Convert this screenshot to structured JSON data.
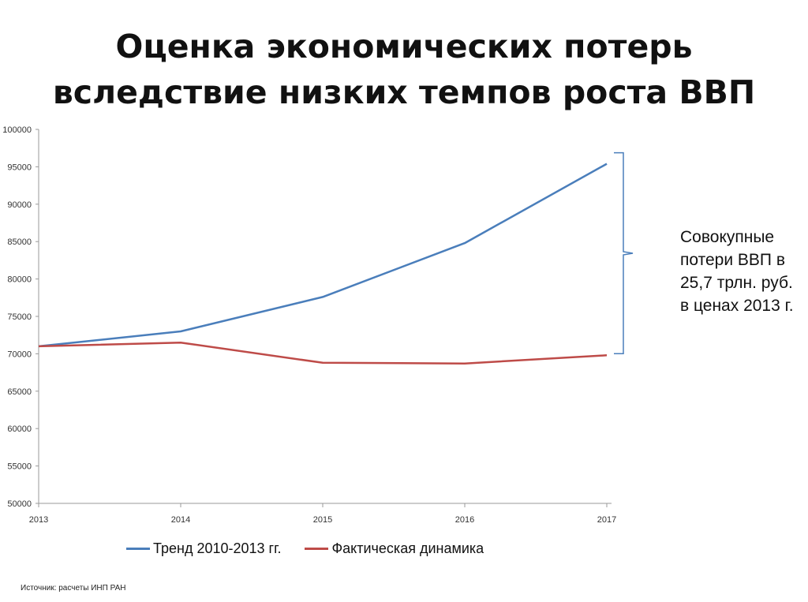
{
  "title": {
    "line1": "Оценка экономических потерь",
    "line2": "вследствие низких темпов роста ВВП"
  },
  "annotation": {
    "lines": [
      "Совокупные",
      "потери ВВП в",
      "25,7 трлн. руб.",
      "в ценах 2013 г."
    ]
  },
  "source": "Источник: расчеты ИНП РАН",
  "chart_data": {
    "type": "line",
    "x": [
      "2013",
      "2014",
      "2015",
      "2016",
      "2017"
    ],
    "ylim": [
      50000,
      100000
    ],
    "yticks": [
      "50000",
      "55000",
      "60000",
      "65000",
      "70000",
      "75000",
      "80000",
      "85000",
      "90000",
      "95000",
      "100000"
    ],
    "grid": false,
    "legend_position": "bottom",
    "series": [
      {
        "name": "Тренд 2010-2013 гг.",
        "color": "#4a7ebb",
        "values": [
          71000,
          73000,
          77600,
          84800,
          95400
        ]
      },
      {
        "name": "Фактическая динамика",
        "color": "#be4b48",
        "values": [
          71000,
          71500,
          68800,
          68700,
          69800
        ]
      }
    ]
  }
}
